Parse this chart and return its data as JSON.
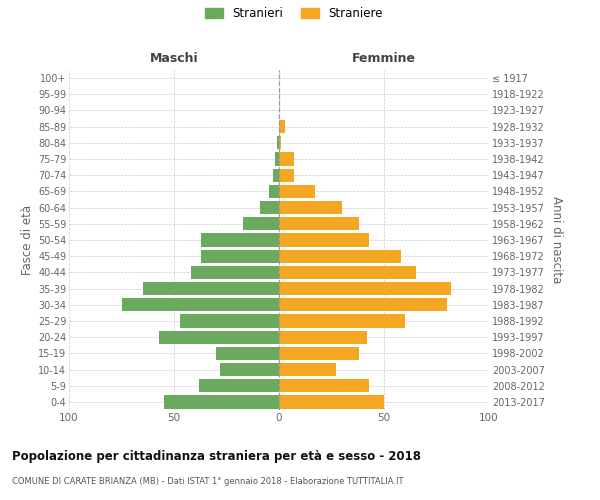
{
  "age_groups": [
    "0-4",
    "5-9",
    "10-14",
    "15-19",
    "20-24",
    "25-29",
    "30-34",
    "35-39",
    "40-44",
    "45-49",
    "50-54",
    "55-59",
    "60-64",
    "65-69",
    "70-74",
    "75-79",
    "80-84",
    "85-89",
    "90-94",
    "95-99",
    "100+"
  ],
  "birth_years": [
    "2013-2017",
    "2008-2012",
    "2003-2007",
    "1998-2002",
    "1993-1997",
    "1988-1992",
    "1983-1987",
    "1978-1982",
    "1973-1977",
    "1968-1972",
    "1963-1967",
    "1958-1962",
    "1953-1957",
    "1948-1952",
    "1943-1947",
    "1938-1942",
    "1933-1937",
    "1928-1932",
    "1923-1927",
    "1918-1922",
    "≤ 1917"
  ],
  "males": [
    55,
    38,
    28,
    30,
    57,
    47,
    75,
    65,
    42,
    37,
    37,
    17,
    9,
    5,
    3,
    2,
    1,
    0,
    0,
    0,
    0
  ],
  "females": [
    50,
    43,
    27,
    38,
    42,
    60,
    80,
    82,
    65,
    58,
    43,
    38,
    30,
    17,
    7,
    7,
    1,
    3,
    0,
    0,
    0
  ],
  "male_color": "#6aaa5e",
  "female_color": "#f5a623",
  "male_label": "Stranieri",
  "female_label": "Straniere",
  "title": "Popolazione per cittadinanza straniera per età e sesso - 2018",
  "subtitle": "COMUNE DI CARATE BRIANZA (MB) - Dati ISTAT 1° gennaio 2018 - Elaborazione TUTTITALIA.IT",
  "left_header": "Maschi",
  "right_header": "Femmine",
  "left_ylabel": "Fasce di età",
  "right_ylabel": "Anni di nascita",
  "xlim": 100,
  "bg_color": "#ffffff",
  "grid_color": "#cccccc",
  "bar_height": 0.82,
  "dpi": 100,
  "figsize": [
    6.0,
    5.0
  ]
}
